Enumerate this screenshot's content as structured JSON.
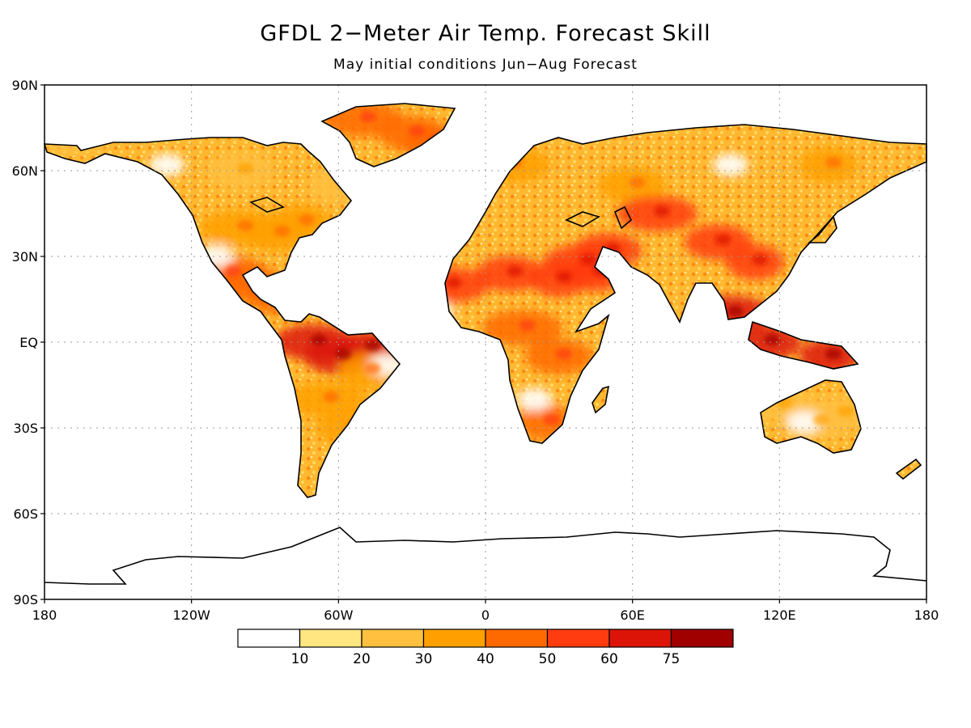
{
  "title": "GFDL 2−Meter Air Temp. Forecast Skill",
  "subtitle": "May initial conditions   Jun−Aug Forecast",
  "axes": {
    "lat_ticks": [
      {
        "value": 90,
        "label": "90N"
      },
      {
        "value": 60,
        "label": "60N"
      },
      {
        "value": 30,
        "label": "30N"
      },
      {
        "value": 0,
        "label": "EQ"
      },
      {
        "value": -30,
        "label": "30S"
      },
      {
        "value": -60,
        "label": "60S"
      },
      {
        "value": -90,
        "label": "90S"
      }
    ],
    "lon_ticks": [
      {
        "value": -180,
        "label": "180"
      },
      {
        "value": -120,
        "label": "120W"
      },
      {
        "value": -60,
        "label": "60W"
      },
      {
        "value": 0,
        "label": "0"
      },
      {
        "value": 60,
        "label": "60E"
      },
      {
        "value": 120,
        "label": "120E"
      },
      {
        "value": 180,
        "label": "180"
      }
    ],
    "grid": "dotted"
  },
  "colorbar": {
    "labels": [
      "10",
      "20",
      "30",
      "40",
      "50",
      "60",
      "75"
    ],
    "colors": [
      "#ffffff",
      "#ffe680",
      "#ffc040",
      "#ffa000",
      "#ff6a00",
      "#ff3c10",
      "#dc1408",
      "#a00000"
    ]
  },
  "chart_data": {
    "type": "heatmap",
    "projection": "equirectangular",
    "variable": "2-Meter Air Temp. Forecast Skill",
    "lon_range": [
      -180,
      180
    ],
    "lat_range": [
      -90,
      90
    ],
    "bins": [
      "<10",
      "10-20",
      "20-30",
      "30-40",
      "40-50",
      "50-60",
      "60-75",
      ">75"
    ],
    "regions": [
      {
        "lon": [
          -168,
          -100,
          -60
        ],
        "lat": [
          72,
          60,
          55
        ],
        "skill_bin": 2
      },
      {
        "lon": [
          -100,
          -85,
          -75
        ],
        "lat": [
          40,
          38,
          42
        ],
        "skill_bin": 3
      },
      {
        "lon": [
          -50,
          -30,
          -22
        ],
        "lat": [
          78,
          73,
          70
        ],
        "skill_bin": 4
      },
      {
        "lon": [
          -105,
          -95,
          -85
        ],
        "lat": [
          24,
          20,
          16
        ],
        "skill_bin": 4
      },
      {
        "lon": [
          -70,
          -60,
          -48
        ],
        "lat": [
          0,
          -5,
          -2
        ],
        "skill_bin": 6
      },
      {
        "lon": [
          -65,
          -55,
          -48
        ],
        "lat": [
          -20,
          -30,
          -10
        ],
        "skill_bin": 3
      },
      {
        "lon": [
          -15,
          10,
          30
        ],
        "lat": [
          20,
          24,
          22
        ],
        "skill_bin": 5
      },
      {
        "lon": [
          15,
          30,
          25
        ],
        "lat": [
          5,
          -5,
          -28
        ],
        "skill_bin": 4
      },
      {
        "lon": [
          40,
          50,
          45
        ],
        "lat": [
          28,
          32,
          24
        ],
        "skill_bin": 5
      },
      {
        "lon": [
          10,
          60,
          140
        ],
        "lat": [
          62,
          55,
          62
        ],
        "skill_bin": 3
      },
      {
        "lon": [
          70,
          95,
          110
        ],
        "lat": [
          45,
          35,
          28
        ],
        "skill_bin": 5
      },
      {
        "lon": [
          100,
          115,
          140
        ],
        "lat": [
          10,
          0,
          -5
        ],
        "skill_bin": 6
      },
      {
        "lon": [
          120,
          135,
          145
        ],
        "lat": [
          -22,
          -28,
          -25
        ],
        "skill_bin": 2
      }
    ]
  }
}
